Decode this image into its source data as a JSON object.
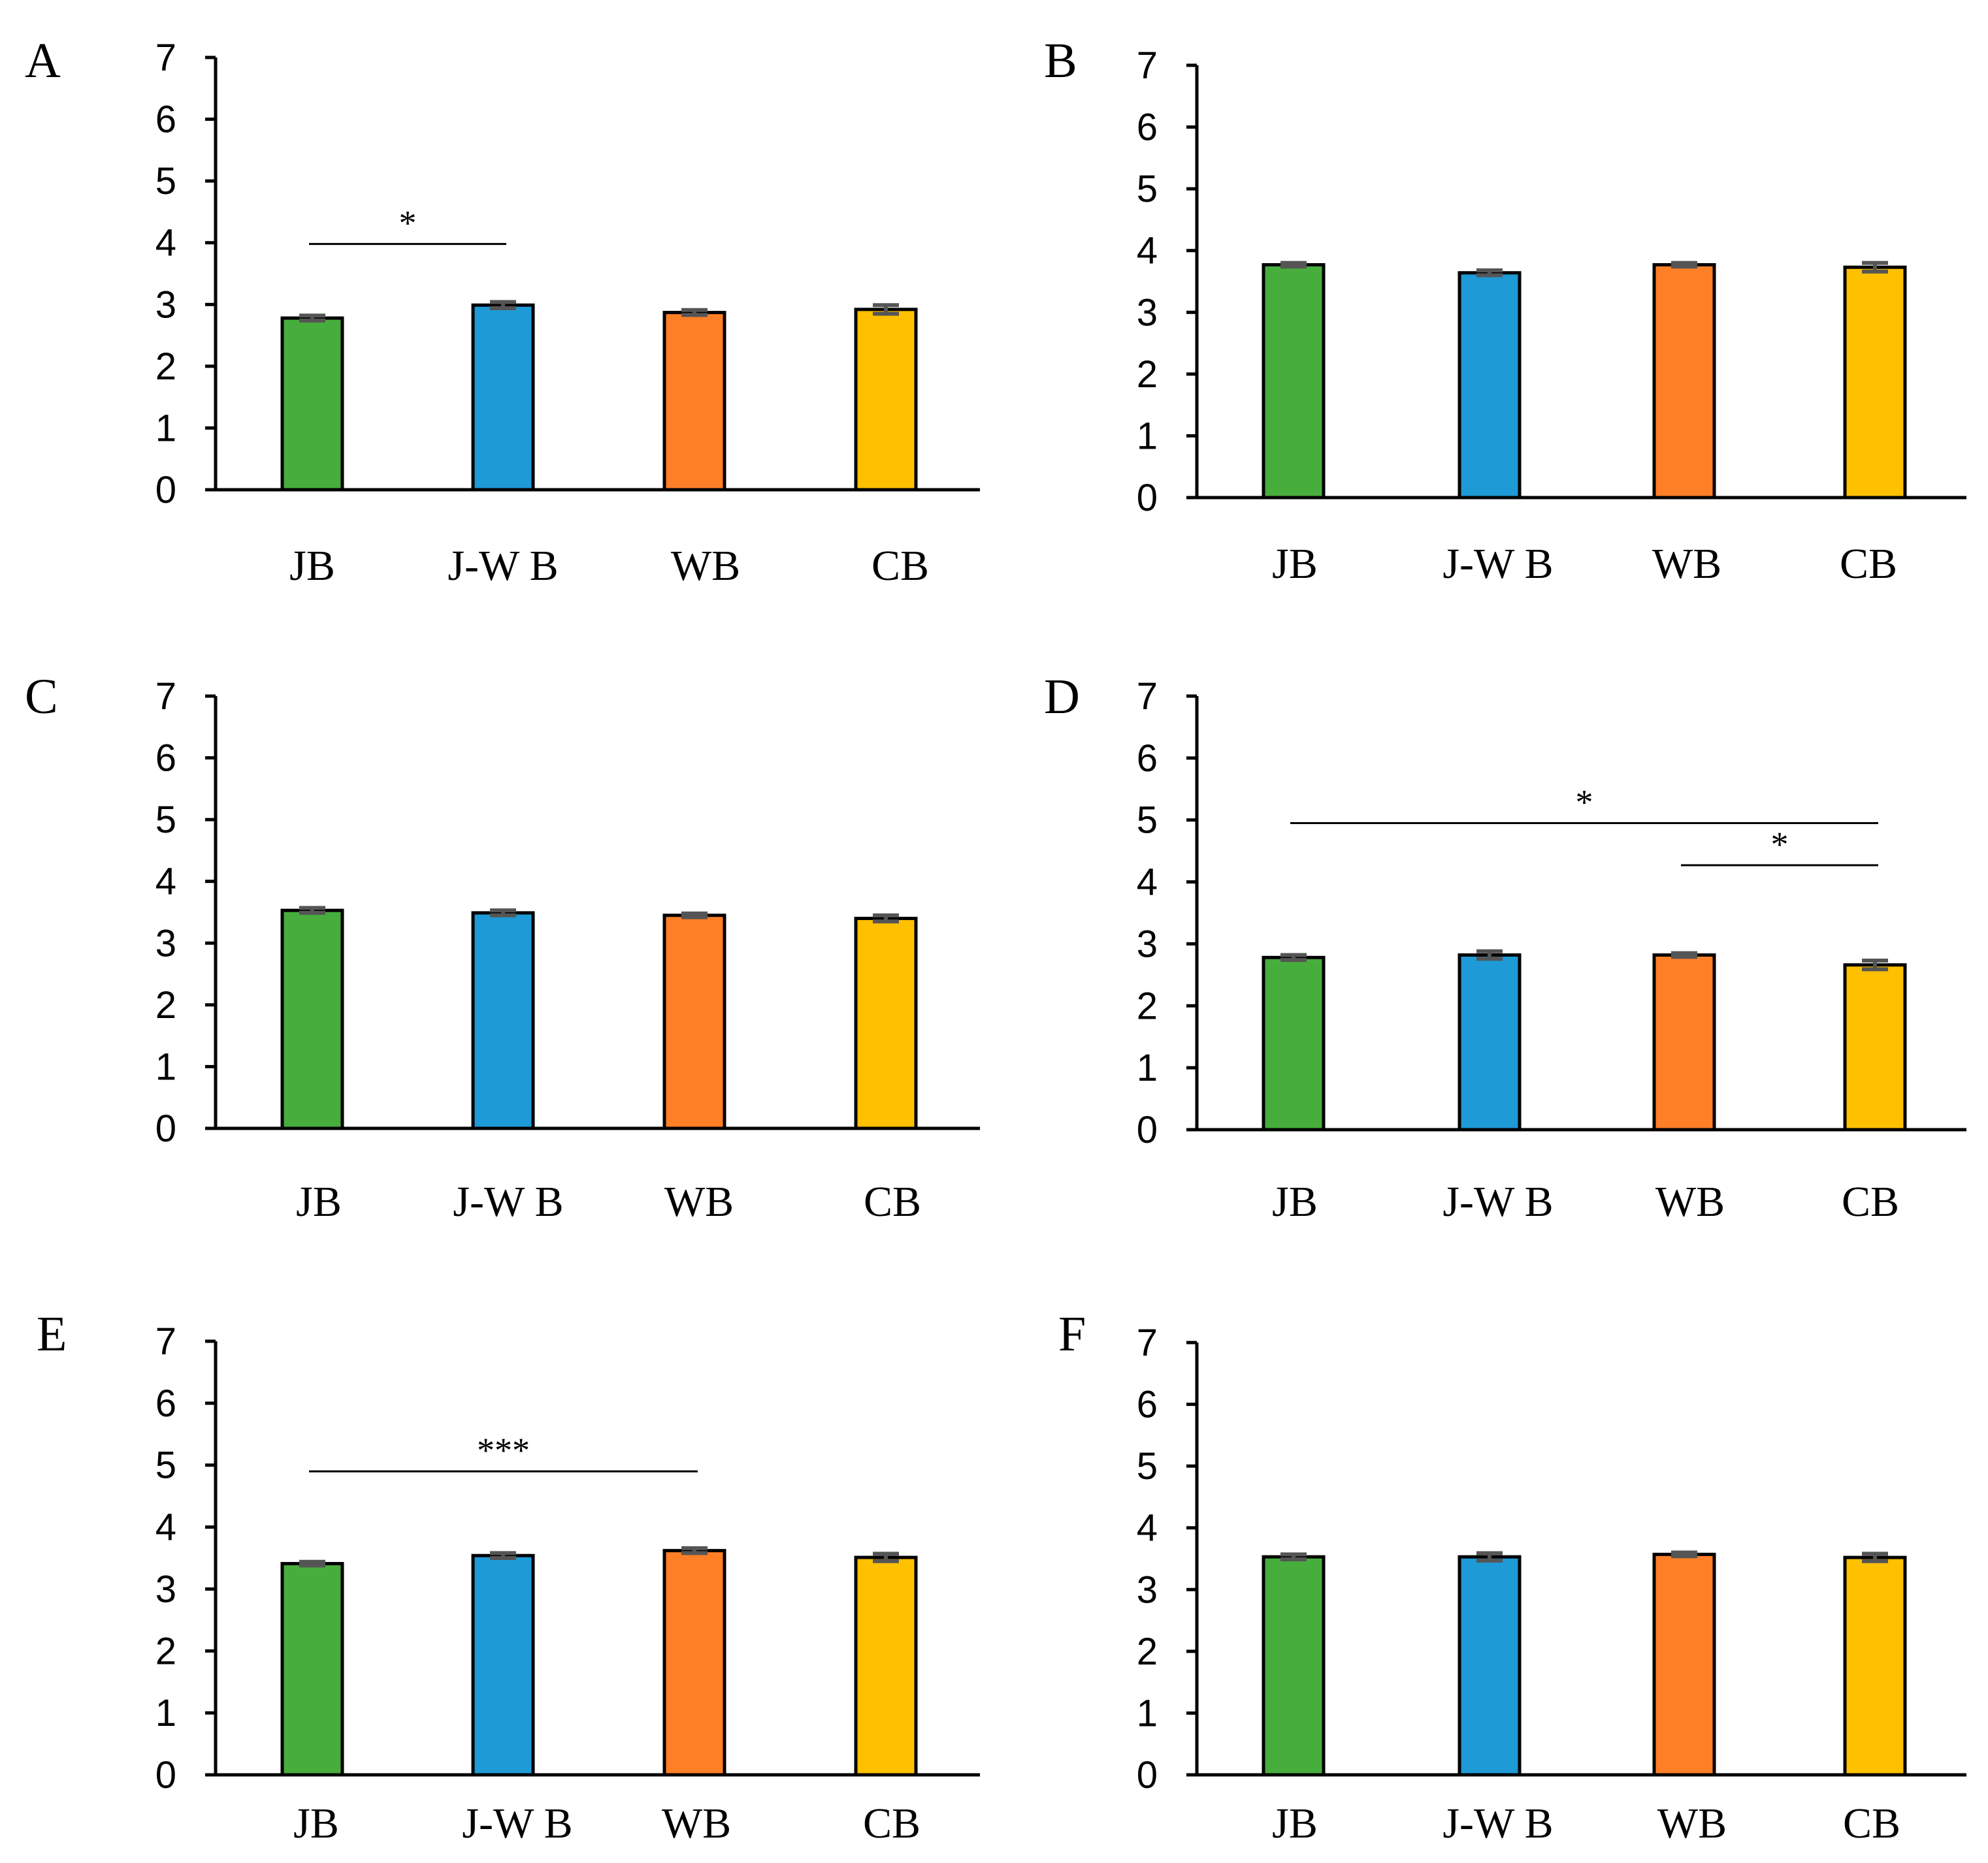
{
  "chart_data": [
    {
      "panel": "A",
      "type": "bar",
      "categories": [
        "JB",
        "J-W B",
        "WB",
        "CB"
      ],
      "values": [
        2.78,
        2.99,
        2.87,
        2.92
      ],
      "errors": [
        0.04,
        0.05,
        0.04,
        0.07
      ],
      "colors": [
        "#47AD3C",
        "#1E9AD6",
        "#FF7F27",
        "#FFC000"
      ],
      "ylim": [
        0,
        7
      ],
      "yticks": [
        0,
        1,
        2,
        3,
        4,
        5,
        6,
        7
      ],
      "significance": [
        {
          "from": 0,
          "to": 1,
          "y": 3.98,
          "label": "*"
        }
      ]
    },
    {
      "panel": "B",
      "type": "bar",
      "categories": [
        "JB",
        "J-W B",
        "WB",
        "CB"
      ],
      "values": [
        3.77,
        3.64,
        3.77,
        3.73
      ],
      "errors": [
        0.03,
        0.04,
        0.03,
        0.07
      ],
      "colors": [
        "#47AD3C",
        "#1E9AD6",
        "#FF7F27",
        "#FFC000"
      ],
      "ylim": [
        0,
        7
      ],
      "yticks": [
        0,
        1,
        2,
        3,
        4,
        5,
        6,
        7
      ],
      "significance": []
    },
    {
      "panel": "C",
      "type": "bar",
      "categories": [
        "JB",
        "J-W B",
        "WB",
        "CB"
      ],
      "values": [
        3.53,
        3.49,
        3.45,
        3.4
      ],
      "errors": [
        0.04,
        0.04,
        0.03,
        0.05
      ],
      "colors": [
        "#47AD3C",
        "#1E9AD6",
        "#FF7F27",
        "#FFC000"
      ],
      "ylim": [
        0,
        7
      ],
      "yticks": [
        0,
        1,
        2,
        3,
        4,
        5,
        6,
        7
      ],
      "significance": []
    },
    {
      "panel": "D",
      "type": "bar",
      "categories": [
        "JB",
        "J-W B",
        "WB",
        "CB"
      ],
      "values": [
        2.78,
        2.82,
        2.82,
        2.66
      ],
      "errors": [
        0.04,
        0.06,
        0.03,
        0.07
      ],
      "colors": [
        "#47AD3C",
        "#1E9AD6",
        "#FF7F27",
        "#FFC000"
      ],
      "ylim": [
        0,
        7
      ],
      "yticks": [
        0,
        1,
        2,
        3,
        4,
        5,
        6,
        7
      ],
      "significance": [
        {
          "from": 0,
          "to": 3,
          "y": 4.95,
          "label": "*"
        },
        {
          "from": 2,
          "to": 3,
          "y": 4.27,
          "label": "*"
        }
      ]
    },
    {
      "panel": "E",
      "type": "bar",
      "categories": [
        "JB",
        "J-W B",
        "WB",
        "CB"
      ],
      "values": [
        3.41,
        3.54,
        3.62,
        3.51
      ],
      "errors": [
        0.03,
        0.04,
        0.04,
        0.06
      ],
      "colors": [
        "#47AD3C",
        "#1E9AD6",
        "#FF7F27",
        "#FFC000"
      ],
      "ylim": [
        0,
        7
      ],
      "yticks": [
        0,
        1,
        2,
        3,
        4,
        5,
        6,
        7
      ],
      "significance": [
        {
          "from": 0,
          "to": 2,
          "y": 4.9,
          "label": "***"
        }
      ]
    },
    {
      "panel": "F",
      "type": "bar",
      "categories": [
        "JB",
        "J-W B",
        "WB",
        "CB"
      ],
      "values": [
        3.53,
        3.53,
        3.57,
        3.52
      ],
      "errors": [
        0.04,
        0.06,
        0.03,
        0.06
      ],
      "colors": [
        "#47AD3C",
        "#1E9AD6",
        "#FF7F27",
        "#FFC000"
      ],
      "ylim": [
        0,
        7
      ],
      "yticks": [
        0,
        1,
        2,
        3,
        4,
        5,
        6,
        7
      ],
      "significance": []
    }
  ]
}
